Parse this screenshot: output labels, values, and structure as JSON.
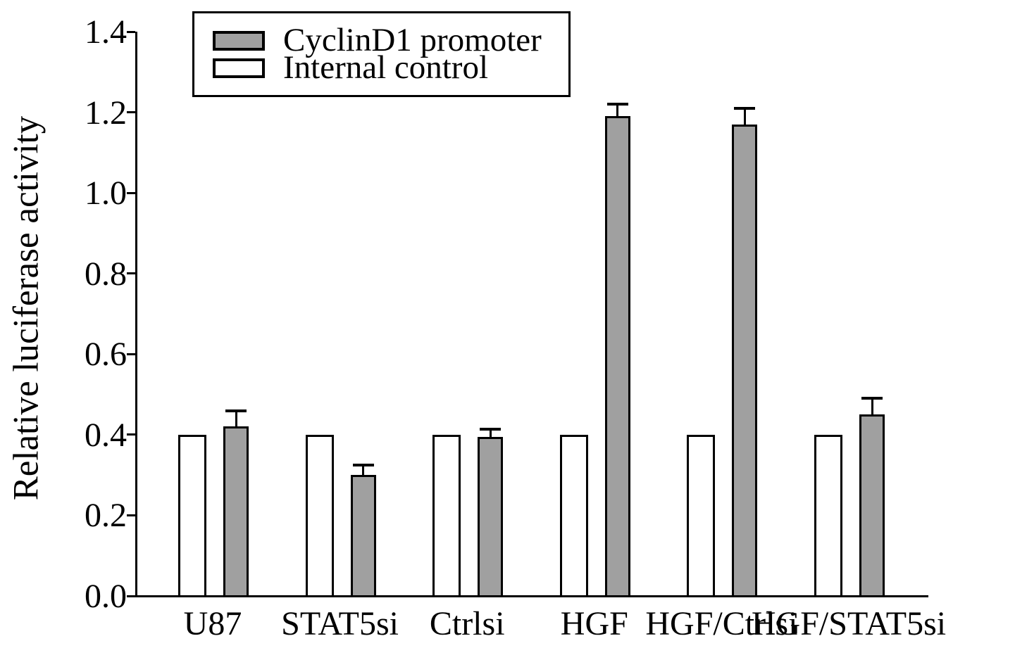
{
  "figure": {
    "background_color": "#ffffff",
    "axis_color": "#000000"
  },
  "legend": {
    "items": [
      {
        "label": "CyclinD1 promoter",
        "color": "#a0a0a0"
      },
      {
        "label": "Internal control",
        "color": "#ffffff"
      }
    ]
  },
  "chart_data": {
    "type": "bar",
    "title": "",
    "xlabel": "",
    "ylabel": "Relative luciferase activity",
    "categories": [
      "U87",
      "STAT5si",
      "Ctrlsi",
      "HGF",
      "HGF/Ctrlsi",
      "HGF/STAT5si"
    ],
    "series": [
      {
        "name": "Internal control",
        "color": "#ffffff",
        "values": [
          0.4,
          0.4,
          0.4,
          0.4,
          0.4,
          0.4
        ],
        "errors": [
          0,
          0,
          0,
          0,
          0,
          0
        ]
      },
      {
        "name": "CyclinD1 promoter",
        "color": "#a0a0a0",
        "values": [
          0.42,
          0.3,
          0.395,
          1.19,
          1.17,
          0.45
        ],
        "errors": [
          0.04,
          0.025,
          0.018,
          0.03,
          0.04,
          0.04
        ]
      }
    ],
    "ylim": [
      0.0,
      1.4
    ],
    "yticks": [
      0.0,
      0.2,
      0.4,
      0.6,
      0.8,
      1.0,
      1.2,
      1.4
    ],
    "ytick_decimals": 1,
    "grid": false,
    "legend_position": "top-left",
    "bar_layout_note": "white Internal control bar drawn left of gray CyclinD1 promoter bar in each group; error bars on gray bars only"
  }
}
